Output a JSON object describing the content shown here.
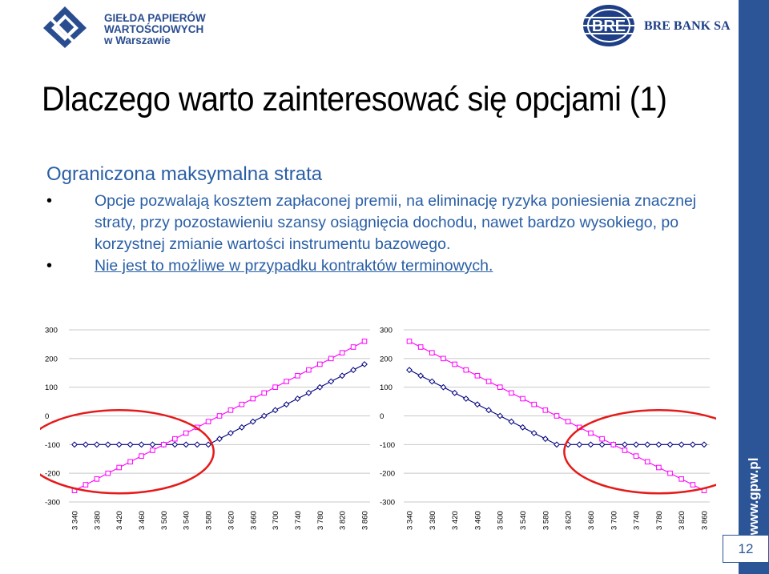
{
  "header": {
    "gpw_logo_lines": [
      "GIEŁDA PAPIERÓW",
      "WARTOŚCIOWYCH",
      "w Warszawie"
    ],
    "bre_logo_text": "BRE BANK SA"
  },
  "slide": {
    "title": "Dlaczego warto zainteresować się opcjami (1)",
    "subtitle": "Ograniczona maksymalna strata",
    "bullets": [
      "Opcje pozwalają kosztem zapłaconej premii, na eliminację ryzyka poniesienia znacznej straty, przy pozostawieniu szansy osiągnięcia dochodu, nawet bardzo wysokiego, po korzystnej zmianie wartości instrumentu bazowego.",
      "Nie jest to możliwe w przypadku kontraktów terminowych."
    ],
    "page_number": "12",
    "band_text": "www.gpw.pl"
  },
  "colors": {
    "brand_blue": "#2c5597",
    "text_blue": "#2a5fa6",
    "option_series": "#00007f",
    "futures_series": "#ff00ff",
    "highlight_circle": "#e51a1a"
  },
  "chart_data": [
    {
      "type": "line",
      "x": [
        3340,
        3360,
        3380,
        3400,
        3420,
        3440,
        3460,
        3480,
        3500,
        3520,
        3540,
        3560,
        3580,
        3600,
        3620,
        3640,
        3660,
        3680,
        3700,
        3720,
        3740,
        3760,
        3780,
        3800,
        3820,
        3840,
        3860
      ],
      "x_tick_labels": [
        "3 340",
        "3 380",
        "3 420",
        "3 460",
        "3 500",
        "3 540",
        "3 580",
        "3 620",
        "3 660",
        "3 700",
        "3 740",
        "3 780",
        "3 820",
        "3 860"
      ],
      "y_tick_labels": [
        "300",
        "200",
        "100",
        "0",
        "-100",
        "-200",
        "-300"
      ],
      "ylim": [
        -300,
        300
      ],
      "series": [
        {
          "marker": "diamond",
          "values": [
            -100,
            -100,
            -100,
            -100,
            -100,
            -100,
            -100,
            -100,
            -100,
            -100,
            -100,
            -100,
            -100,
            -80,
            -60,
            -40,
            -20,
            0,
            20,
            40,
            60,
            80,
            100,
            120,
            140,
            160,
            180
          ]
        },
        {
          "marker": "square",
          "values": [
            -260,
            -240,
            -220,
            -200,
            -180,
            -160,
            -140,
            -120,
            -100,
            -80,
            -60,
            -40,
            -20,
            0,
            20,
            40,
            60,
            80,
            100,
            120,
            140,
            160,
            180,
            200,
            220,
            240,
            260
          ]
        }
      ],
      "grid": true,
      "legend": "none"
    },
    {
      "type": "line",
      "x": [
        3340,
        3360,
        3380,
        3400,
        3420,
        3440,
        3460,
        3480,
        3500,
        3520,
        3540,
        3560,
        3580,
        3600,
        3620,
        3640,
        3660,
        3680,
        3700,
        3720,
        3740,
        3760,
        3780,
        3800,
        3820,
        3840,
        3860
      ],
      "x_tick_labels": [
        "3 340",
        "3 380",
        "3 420",
        "3 460",
        "3 500",
        "3 540",
        "3 580",
        "3 620",
        "3 660",
        "3 700",
        "3 740",
        "3 780",
        "3 820",
        "3 860"
      ],
      "y_tick_labels": [
        "300",
        "200",
        "100",
        "0",
        "-100",
        "-200",
        "-300"
      ],
      "ylim": [
        -300,
        300
      ],
      "series": [
        {
          "marker": "diamond",
          "values": [
            160,
            140,
            120,
            100,
            80,
            60,
            40,
            20,
            0,
            -20,
            -40,
            -60,
            -80,
            -100,
            -100,
            -100,
            -100,
            -100,
            -100,
            -100,
            -100,
            -100,
            -100,
            -100,
            -100,
            -100,
            -100
          ]
        },
        {
          "marker": "square",
          "values": [
            260,
            240,
            220,
            200,
            180,
            160,
            140,
            120,
            100,
            80,
            60,
            40,
            20,
            0,
            -20,
            -40,
            -60,
            -80,
            -100,
            -120,
            -140,
            -160,
            -180,
            -200,
            -220,
            -240,
            -260
          ]
        }
      ],
      "grid": true,
      "legend": "none"
    }
  ]
}
